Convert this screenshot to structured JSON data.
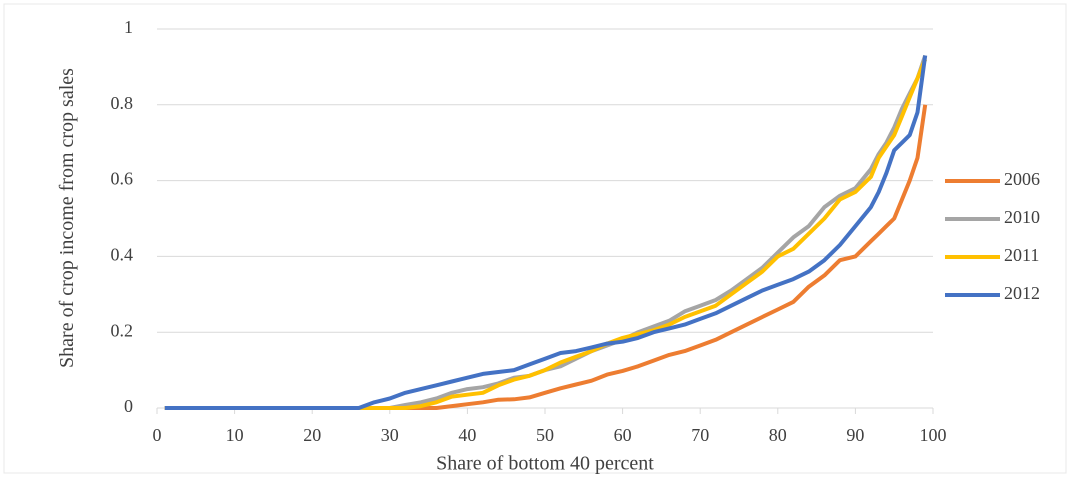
{
  "chart_data": {
    "type": "line",
    "xlabel": "Share of bottom 40 percent",
    "ylabel": "Share of crop income from crop sales",
    "x": [
      1,
      5,
      10,
      15,
      20,
      25,
      26,
      28,
      30,
      32,
      34,
      36,
      38,
      40,
      42,
      44,
      46,
      48,
      50,
      52,
      54,
      56,
      58,
      60,
      62,
      64,
      66,
      68,
      70,
      72,
      74,
      76,
      78,
      80,
      82,
      84,
      86,
      88,
      90,
      92,
      93,
      94,
      95,
      96,
      97,
      98,
      99
    ],
    "series": [
      {
        "name": "2006",
        "color": "#ed7d31",
        "values": [
          0,
          0,
          0,
          0,
          0,
          0,
          0,
          0,
          0,
          0,
          0,
          0,
          0.005,
          0.01,
          0.015,
          0.022,
          0.023,
          0.028,
          0.04,
          0.052,
          0.062,
          0.072,
          0.088,
          0.098,
          0.11,
          0.125,
          0.14,
          0.15,
          0.165,
          0.18,
          0.2,
          0.22,
          0.24,
          0.26,
          0.28,
          0.32,
          0.35,
          0.39,
          0.4,
          0.44,
          0.46,
          0.48,
          0.5,
          0.55,
          0.6,
          0.66,
          0.8
        ]
      },
      {
        "name": "2010",
        "color": "#a5a5a5",
        "values": [
          0,
          0,
          0,
          0,
          0,
          0,
          0,
          0,
          0,
          0.008,
          0.015,
          0.025,
          0.04,
          0.05,
          0.055,
          0.065,
          0.08,
          0.085,
          0.1,
          0.11,
          0.13,
          0.15,
          0.165,
          0.18,
          0.2,
          0.215,
          0.23,
          0.255,
          0.27,
          0.285,
          0.31,
          0.34,
          0.37,
          0.41,
          0.45,
          0.48,
          0.53,
          0.56,
          0.58,
          0.63,
          0.67,
          0.7,
          0.74,
          0.79,
          0.83,
          0.87,
          0.93
        ]
      },
      {
        "name": "2011",
        "color": "#ffc000",
        "values": [
          0,
          0,
          0,
          0,
          0,
          0,
          0,
          0,
          0,
          0,
          0.005,
          0.015,
          0.03,
          0.035,
          0.04,
          0.06,
          0.075,
          0.085,
          0.1,
          0.12,
          0.135,
          0.15,
          0.17,
          0.185,
          0.195,
          0.205,
          0.22,
          0.24,
          0.255,
          0.27,
          0.3,
          0.33,
          0.36,
          0.4,
          0.42,
          0.46,
          0.5,
          0.55,
          0.57,
          0.61,
          0.66,
          0.69,
          0.72,
          0.77,
          0.82,
          0.87,
          0.92
        ]
      },
      {
        "name": "2012",
        "color": "#4472c4",
        "values": [
          0,
          0,
          0,
          0,
          0,
          0,
          0,
          0.015,
          0.025,
          0.04,
          0.05,
          0.06,
          0.07,
          0.08,
          0.09,
          0.095,
          0.1,
          0.115,
          0.13,
          0.145,
          0.15,
          0.16,
          0.17,
          0.175,
          0.185,
          0.2,
          0.21,
          0.22,
          0.235,
          0.25,
          0.27,
          0.29,
          0.31,
          0.325,
          0.34,
          0.36,
          0.39,
          0.43,
          0.48,
          0.53,
          0.57,
          0.62,
          0.68,
          0.7,
          0.72,
          0.78,
          0.93
        ]
      }
    ],
    "xlim": [
      0,
      100
    ],
    "xticks": [
      0,
      10,
      20,
      30,
      40,
      50,
      60,
      70,
      80,
      90,
      100
    ],
    "ylim": [
      0,
      1
    ],
    "yticks": [
      0,
      0.2,
      0.4,
      0.6,
      0.8,
      1
    ],
    "grid": true,
    "legend": "right"
  }
}
